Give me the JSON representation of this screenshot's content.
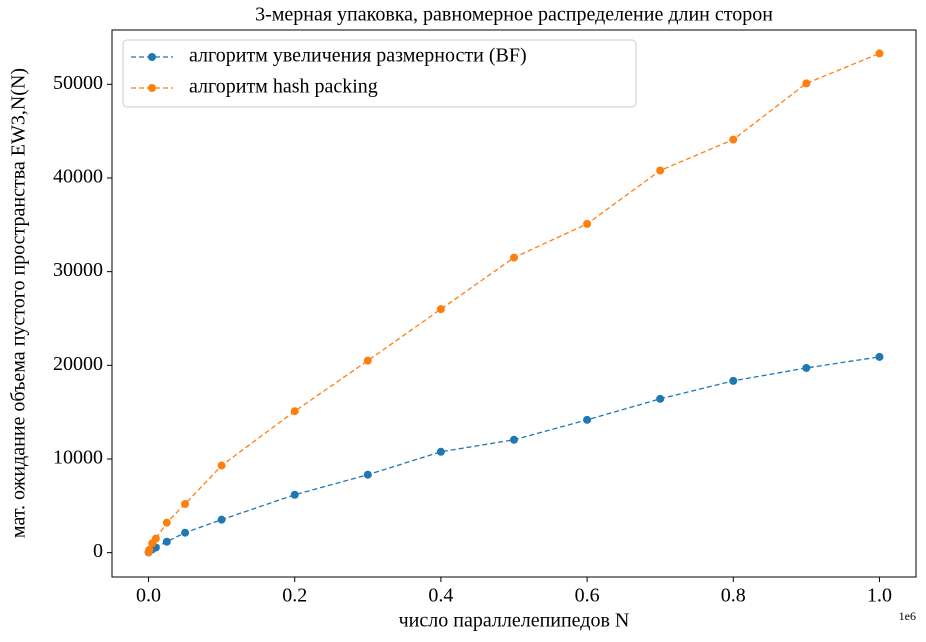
{
  "chart_data": {
    "type": "line",
    "title": "3-мерная упаковка, равномерное распределение длин сторон",
    "x_label": "число параллелепипедов N",
    "y_label": "мат. ожидание объема пустого пространства EW3,N(N)",
    "x_offset_label": "1e6",
    "x": [
      100,
      1000,
      5000,
      10000,
      25000,
      50000,
      100000,
      200000,
      300000,
      400000,
      500000,
      600000,
      700000,
      800000,
      900000,
      1000000
    ],
    "series": [
      {
        "name": "алгоритм увеличения размерности (BF)",
        "color": "#1f77b4",
        "values": [
          30,
          150,
          350,
          550,
          1170,
          2130,
          3520,
          6180,
          8320,
          10770,
          12050,
          14180,
          16420,
          18340,
          19720,
          20900
        ]
      },
      {
        "name": "алгоритм hash packing",
        "color": "#ff7f0e",
        "values": [
          50,
          300,
          1000,
          1500,
          3200,
          5200,
          9300,
          15100,
          20500,
          26000,
          31500,
          35100,
          40800,
          44100,
          50100,
          53300
        ]
      }
    ],
    "xlim": [
      -50000,
      1050000
    ],
    "ylim": [
      -2600,
      55800
    ],
    "xticks": [
      {
        "value": 0,
        "label": "0.0"
      },
      {
        "value": 200000,
        "label": "0.2"
      },
      {
        "value": 400000,
        "label": "0.4"
      },
      {
        "value": 600000,
        "label": "0.6"
      },
      {
        "value": 800000,
        "label": "0.8"
      },
      {
        "value": 1000000,
        "label": "1.0"
      }
    ],
    "yticks": [
      0,
      10000,
      20000,
      30000,
      40000,
      50000
    ],
    "legend": "upper left",
    "grid": false
  }
}
